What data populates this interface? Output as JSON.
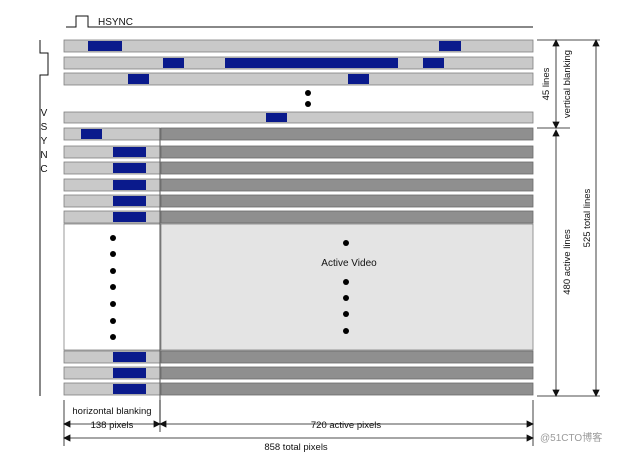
{
  "labels": {
    "hsync": "HSYNC",
    "vsync_letters": [
      "V",
      "S",
      "Y",
      "N",
      "C"
    ],
    "vertical_blanking": "vertical blanking",
    "lines_45": "45 lines",
    "active_lines": "480 active lines",
    "total_lines": "525 total lines",
    "active_video": "Active Video",
    "horizontal_blanking": "horizontal blanking",
    "pixels_138": "138 pixels",
    "active_pixels": "720 active pixels",
    "total_pixels": "858 total pixels",
    "watermark": "@51CTO博客"
  },
  "colors": {
    "blanking_gray": "#c9c9c9",
    "active_gray": "#8f8f8f",
    "active_area": "#e4e4e4",
    "sync_blue": "#0a1a8c"
  }
}
